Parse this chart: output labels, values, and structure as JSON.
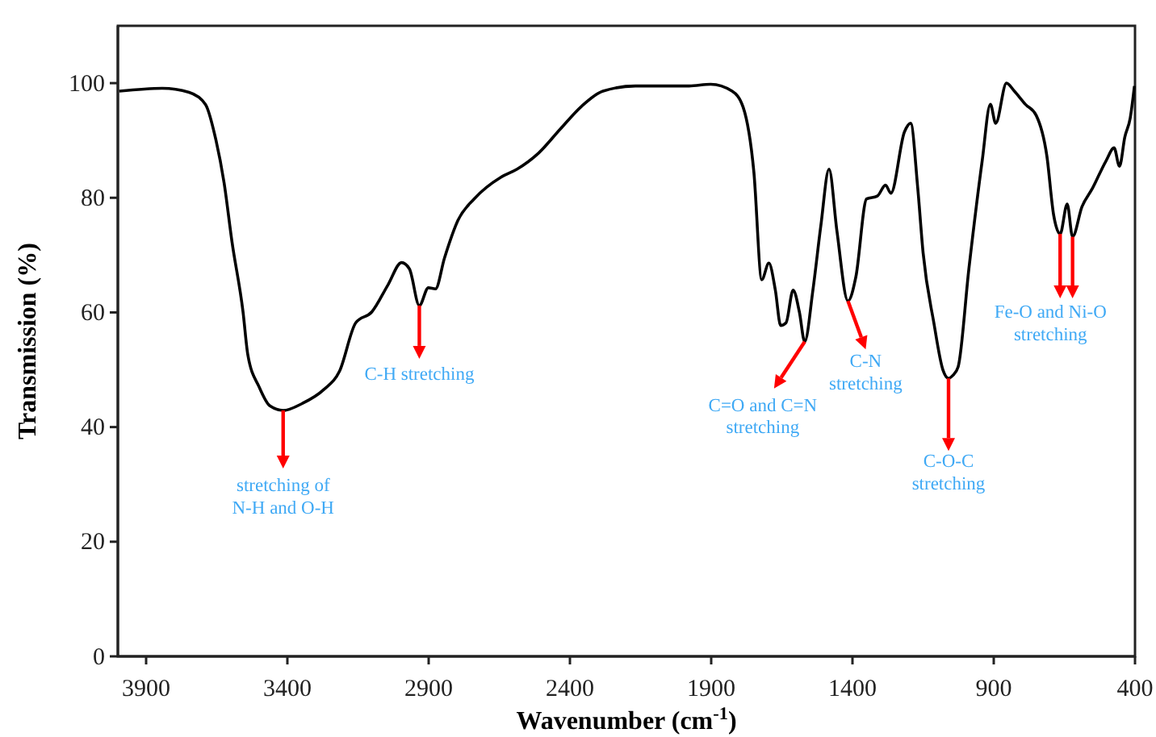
{
  "chart_data": {
    "type": "line",
    "xlabel": "Wavenumber (cm$^{-1}$)",
    "ylabel": "Transmission (%)",
    "xlim": [
      4000,
      400
    ],
    "xticks": [
      3900,
      3400,
      2900,
      2400,
      1900,
      1400,
      900,
      400
    ],
    "ylim": [
      0,
      110
    ],
    "yticks": [
      0,
      20,
      40,
      60,
      80,
      100
    ],
    "grid": false,
    "marker": "none",
    "line_style": "solid",
    "series": [
      {
        "color": "#000000",
        "x": [
          3995,
          3843,
          3748,
          3690,
          3653,
          3624,
          3596,
          3557,
          3540,
          3500,
          3462,
          3415,
          3348,
          3272,
          3215,
          3158,
          3101,
          3044,
          2996,
          2968,
          2933,
          2901,
          2876,
          2844,
          2796,
          2739,
          2644,
          2587,
          2511,
          2434,
          2358,
          2283,
          2168,
          1978,
          1902,
          1826,
          1787,
          1749,
          1721,
          1696,
          1673,
          1654,
          1635,
          1610,
          1588,
          1569,
          1540,
          1512,
          1483,
          1455,
          1416,
          1388,
          1350,
          1312,
          1283,
          1264,
          1216,
          1194,
          1169,
          1150,
          1112,
          1080,
          1060,
          1045,
          1026,
          988,
          941,
          912,
          893,
          855,
          827,
          788,
          750,
          712,
          688,
          665,
          640,
          621,
          588,
          550,
          503,
          474,
          455,
          436,
          417,
          402
        ],
        "values": [
          98.6,
          99.1,
          98.4,
          96.3,
          90.1,
          82.6,
          72.3,
          60.1,
          52.6,
          47.0,
          43.7,
          42.9,
          44.1,
          46.5,
          49.8,
          58.2,
          60.1,
          64.8,
          68.7,
          67.6,
          61.2,
          64.3,
          64.1,
          69.5,
          76.1,
          79.8,
          83.6,
          85.0,
          87.8,
          92.0,
          96.0,
          98.6,
          99.5,
          99.5,
          99.8,
          98.6,
          95.8,
          84.5,
          65.7,
          68.6,
          63.9,
          57.7,
          58.2,
          63.9,
          60.1,
          54.9,
          63.9,
          75.1,
          85.0,
          74.2,
          62.0,
          66.2,
          79.8,
          80.3,
          82.2,
          80.8,
          91.5,
          93.0,
          81.7,
          70.4,
          58.2,
          50.0,
          48.5,
          49.0,
          50.5,
          67.6,
          86.4,
          96.3,
          93.0,
          100.0,
          98.6,
          96.3,
          94.4,
          87.3,
          77.0,
          73.7,
          78.9,
          73.2,
          78.4,
          81.7,
          86.4,
          88.7,
          85.5,
          90.6,
          93.9,
          99.5
        ]
      }
    ],
    "annotations": [
      {
        "text": "stretching of N-H and O-H",
        "x": 3415,
        "y": 42.9
      },
      {
        "text": "C-H stretching",
        "x": 2933,
        "y": 61.2
      },
      {
        "text": "C=O and C=N stretching",
        "x": 1569,
        "y": 54.9
      },
      {
        "text": "C-N stretching",
        "x": 1416,
        "y": 62.0
      },
      {
        "text": "C-O-C stretching",
        "x": 1060,
        "y": 48.5
      },
      {
        "text": "Fe-O and Ni-O stretching",
        "x": 665,
        "y": 73.7
      }
    ]
  }
}
